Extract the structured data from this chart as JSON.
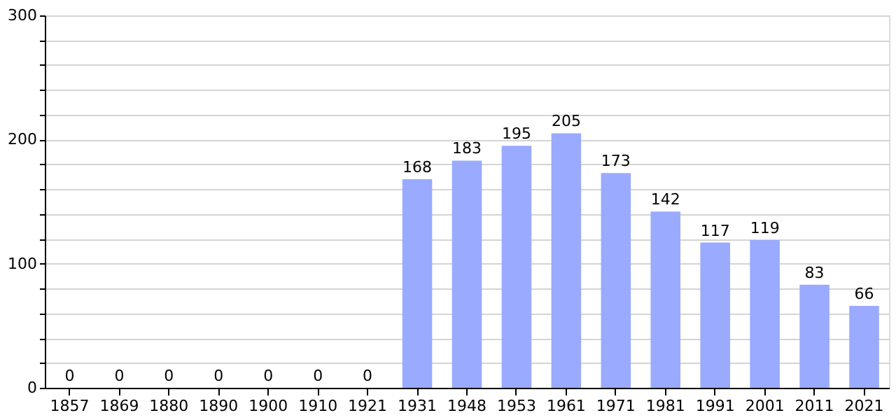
{
  "chart_data": {
    "type": "bar",
    "categories": [
      "1857",
      "1869",
      "1880",
      "1890",
      "1900",
      "1910",
      "1921",
      "1931",
      "1948",
      "1953",
      "1961",
      "1971",
      "1981",
      "1991",
      "2001",
      "2011",
      "2021"
    ],
    "values": [
      0,
      0,
      0,
      0,
      0,
      0,
      0,
      168,
      183,
      195,
      205,
      173,
      142,
      117,
      119,
      83,
      66
    ],
    "color": "#99aaff",
    "ylim": [
      0,
      300
    ],
    "yticks": [
      0,
      {
        "value": 20,
        "label": null
      },
      {
        "value": 40,
        "label": null
      },
      {
        "value": 60,
        "label": null
      },
      {
        "value": 80,
        "label": null
      },
      100,
      {
        "value": 120,
        "label": null
      },
      {
        "value": 140,
        "label": null
      },
      {
        "value": 160,
        "label": null
      },
      {
        "value": 180,
        "label": null
      },
      200,
      {
        "value": 220,
        "label": null
      },
      {
        "value": 240,
        "label": null
      },
      {
        "value": 260,
        "label": null
      },
      {
        "value": 280,
        "label": null
      },
      300
    ],
    "grid": "y",
    "data_labels": true
  }
}
